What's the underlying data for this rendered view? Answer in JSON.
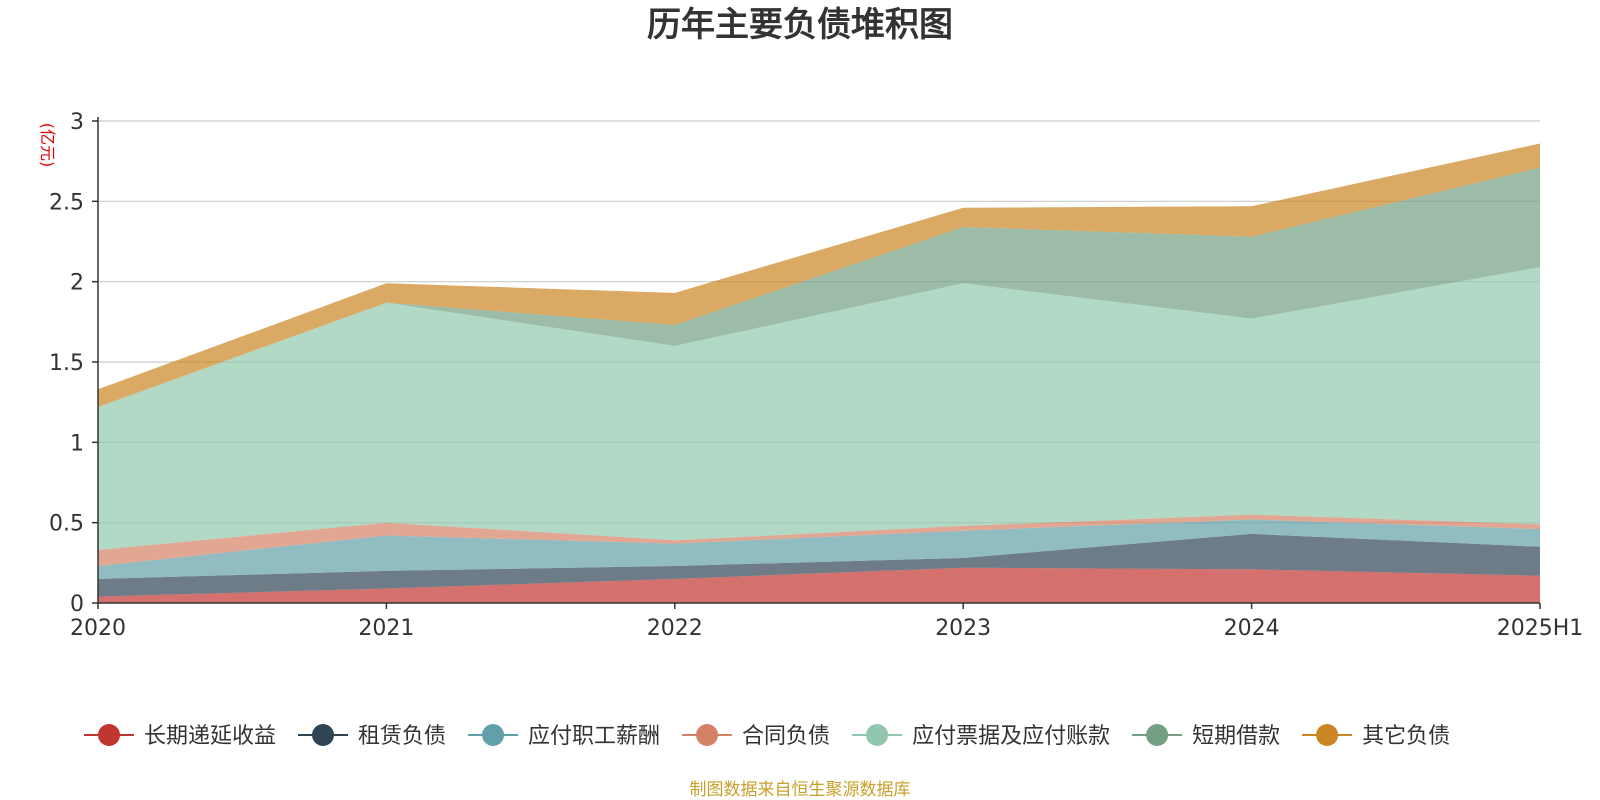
{
  "chart_data": {
    "type": "area",
    "stacked": true,
    "title": "历年主要负债堆积图",
    "unit_label": "(亿元)",
    "categories": [
      "2020",
      "2021",
      "2022",
      "2023",
      "2024",
      "2025H1"
    ],
    "ylim": [
      0,
      3
    ],
    "yticks": [
      "0",
      "0.5",
      "1",
      "1.5",
      "2",
      "2.5",
      "3"
    ],
    "grid": true,
    "legend_position": "bottom",
    "series": [
      {
        "name": "长期递延收益",
        "color": "#c23531",
        "values": [
          0.04,
          0.09,
          0.15,
          0.22,
          0.21,
          0.17
        ]
      },
      {
        "name": "租赁负债",
        "color": "#2f4554",
        "values": [
          0.11,
          0.11,
          0.08,
          0.06,
          0.22,
          0.18
        ]
      },
      {
        "name": "应付职工薪酬",
        "color": "#61a0a8",
        "values": [
          0.08,
          0.22,
          0.14,
          0.17,
          0.09,
          0.11
        ]
      },
      {
        "name": "合同负债",
        "color": "#d48265",
        "values": [
          0.1,
          0.08,
          0.02,
          0.03,
          0.03,
          0.03
        ]
      },
      {
        "name": "应付票据及应付账款",
        "color": "#91c7ae",
        "values": [
          0.89,
          1.37,
          1.21,
          1.51,
          1.22,
          1.6
        ]
      },
      {
        "name": "短期借款",
        "color": "#749f83",
        "values": [
          0.0,
          0.0,
          0.13,
          0.35,
          0.51,
          0.62
        ]
      },
      {
        "name": "其它负债",
        "color": "#ca8622",
        "values": [
          0.11,
          0.12,
          0.2,
          0.12,
          0.19,
          0.15
        ]
      }
    ],
    "source_note": "制图数据来自恒生聚源数据库"
  }
}
